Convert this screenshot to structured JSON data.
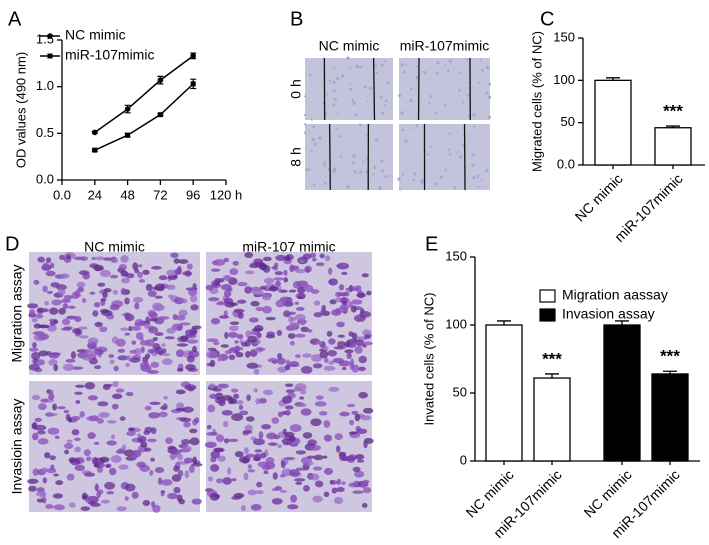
{
  "chart_data": [
    {
      "panel": "A",
      "type": "line",
      "x": [
        24,
        48,
        72,
        96
      ],
      "xlim": [
        0,
        120
      ],
      "xticks": [
        {
          "value": 0,
          "label": "0.0"
        },
        24,
        48,
        72,
        96,
        {
          "value": 120,
          "label": "120 h"
        }
      ],
      "ylabel": "OD values (490 nm)",
      "ylim": [
        0,
        1.5
      ],
      "yticks": [
        {
          "value": 0,
          "label": "0.0"
        },
        0.5,
        {
          "value": 1,
          "label": "1.0"
        },
        1.5
      ],
      "series": [
        {
          "name": "NC mimic",
          "color": "#000000",
          "marker": "circle",
          "values": [
            0.51,
            0.76,
            1.07,
            1.33
          ],
          "errors": [
            0.01,
            0.04,
            0.04,
            0.03
          ]
        },
        {
          "name": "miR-107mimic",
          "color": "#000000",
          "marker": "square",
          "values": [
            0.32,
            0.48,
            0.7,
            1.03
          ],
          "errors": [
            0.01,
            0.02,
            0.01,
            0.05
          ]
        }
      ]
    },
    {
      "panel": "C",
      "type": "bar",
      "ylabel": "Migrated cells (% of NC)",
      "ylim": [
        0,
        150
      ],
      "yticks": [
        {
          "value": 0,
          "label": "0.0"
        },
        50,
        100,
        150
      ],
      "categories": [
        "NC mimic",
        "miR-107mimic"
      ],
      "series": [
        {
          "color": "#ffffff",
          "values": [
            100,
            44
          ],
          "errors": [
            3,
            2
          ],
          "significance": [
            null,
            "***"
          ]
        }
      ]
    },
    {
      "panel": "E",
      "type": "bar",
      "ylabel": "Invated cells (% of NC)",
      "ylim": [
        0,
        150
      ],
      "yticks": [
        0,
        50,
        100,
        150
      ],
      "categories": [
        "NC mimic",
        "miR-107mimic",
        "NC mimic",
        "miR-107mimic"
      ],
      "series": [
        {
          "name": "Migration aassay",
          "color": "#ffffff",
          "values": [
            100,
            61,
            null,
            null
          ],
          "errors": [
            3,
            3,
            null,
            null
          ],
          "significance": [
            null,
            "***",
            null,
            null
          ]
        },
        {
          "name": "Invasion assay",
          "color": "#000000",
          "values": [
            null,
            null,
            100,
            64
          ],
          "errors": [
            null,
            null,
            3,
            2
          ],
          "significance": [
            null,
            null,
            null,
            "***"
          ]
        }
      ]
    }
  ],
  "panels": [
    {
      "label": "B",
      "columns": [
        "NC mimic",
        "miR-107mimic"
      ],
      "rows": [
        "0 h",
        "8 h"
      ]
    },
    {
      "label": "D",
      "columns": [
        "NC mimic",
        "miR-107 mimic"
      ],
      "rows": [
        "Migration assay",
        "Invasioin assay"
      ]
    }
  ]
}
